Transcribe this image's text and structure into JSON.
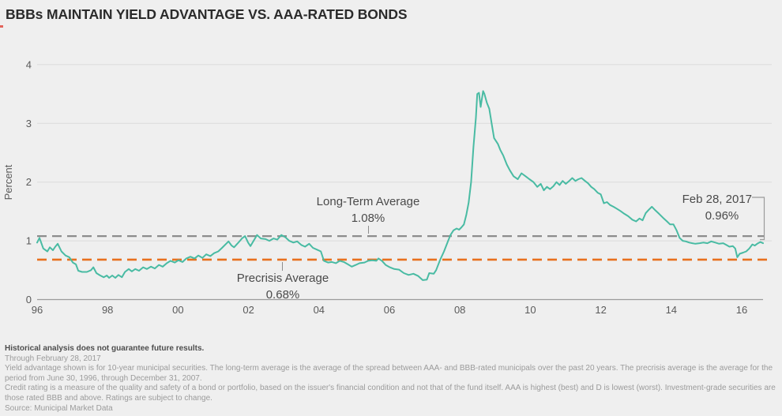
{
  "title": "BBBs MAINTAIN YIELD ADVANTAGE VS. AAA-RATED BONDS",
  "colors": {
    "background": "#efefef",
    "series_line": "#49bba3",
    "long_term_avg_line": "#8c8c8c",
    "precrisis_avg_line": "#e8701e",
    "gridline": "#dbdbdb",
    "axis_line": "#9b9b9b",
    "accent_mark": "#e2635a"
  },
  "annotations": {
    "long_term": {
      "label": "Long-Term Average",
      "value_label": "1.08%"
    },
    "precrisis": {
      "label": "Precrisis Average",
      "value_label": "0.68%"
    },
    "endpoint": {
      "label": "Feb 28, 2017",
      "value_label": "0.96%"
    }
  },
  "footnotes": {
    "disclaimer": "Historical analysis does not guarantee future results.",
    "through": "Through February 28, 2017",
    "note1": "Yield advantage shown is for 10-year municipal securities. The long-term average is the average of the spread between AAA- and BBB-rated municipals over the past 20 years. The precrisis average is the average for the period from June 30, 1996, through December 31, 2007.",
    "note2": "Credit rating is a measure of the quality and safety of a bond or portfolio, based on the issuer's financial condition and not that of the fund itself. AAA is highest (best) and D is lowest (worst). Investment-grade securities are those rated BBB and above. Ratings are subject to change.",
    "source": "Source: Municipal Market Data"
  },
  "chart_data": {
    "type": "line",
    "title": "BBBs MAINTAIN YIELD ADVANTAGE VS. AAA-RATED BONDS",
    "ylabel": "Percent",
    "ylim": [
      0,
      4
    ],
    "yticks": [
      0,
      1,
      2,
      3,
      4
    ],
    "x_range": [
      1996,
      2017.16
    ],
    "xticks": [
      {
        "year": 1996,
        "label": "96"
      },
      {
        "year": 1998,
        "label": "98"
      },
      {
        "year": 2000,
        "label": "00"
      },
      {
        "year": 2002,
        "label": "02"
      },
      {
        "year": 2004,
        "label": "04"
      },
      {
        "year": 2006,
        "label": "06"
      },
      {
        "year": 2008,
        "label": "08"
      },
      {
        "year": 2010,
        "label": "10"
      },
      {
        "year": 2012,
        "label": "12"
      },
      {
        "year": 2014,
        "label": "14"
      },
      {
        "year": 2016,
        "label": "16"
      }
    ],
    "grid": "horizontal",
    "reference_lines": [
      {
        "name": "long_term_average",
        "label": "Long-Term Average",
        "value": 1.08,
        "value_label": "1.08%",
        "style": "dashed",
        "color": "#8c8c8c"
      },
      {
        "name": "precrisis_average",
        "label": "Precrisis Average",
        "value": 0.68,
        "value_label": "0.68%",
        "style": "dashed",
        "color": "#e8701e"
      }
    ],
    "endpoint_annotation": {
      "label": "Feb 28, 2017",
      "value": 0.96,
      "value_label": "0.96%"
    },
    "series": [
      {
        "name": "BBB vs. AAA yield advantage (10-year municipals)",
        "color": "#49bba3",
        "points": [
          [
            1996.0,
            0.97
          ],
          [
            1996.07,
            1.05
          ],
          [
            1996.18,
            0.87
          ],
          [
            1996.3,
            0.82
          ],
          [
            1996.37,
            0.89
          ],
          [
            1996.46,
            0.84
          ],
          [
            1996.53,
            0.9
          ],
          [
            1996.6,
            0.95
          ],
          [
            1996.71,
            0.82
          ],
          [
            1996.83,
            0.75
          ],
          [
            1996.94,
            0.72
          ],
          [
            1997.04,
            0.63
          ],
          [
            1997.13,
            0.6
          ],
          [
            1997.2,
            0.49
          ],
          [
            1997.31,
            0.47
          ],
          [
            1997.45,
            0.47
          ],
          [
            1997.57,
            0.5
          ],
          [
            1997.64,
            0.55
          ],
          [
            1997.73,
            0.45
          ],
          [
            1997.84,
            0.41
          ],
          [
            1997.94,
            0.38
          ],
          [
            1998.03,
            0.41
          ],
          [
            1998.1,
            0.37
          ],
          [
            1998.19,
            0.41
          ],
          [
            1998.28,
            0.37
          ],
          [
            1998.37,
            0.42
          ],
          [
            1998.47,
            0.38
          ],
          [
            1998.56,
            0.47
          ],
          [
            1998.67,
            0.52
          ],
          [
            1998.76,
            0.48
          ],
          [
            1998.86,
            0.52
          ],
          [
            1998.97,
            0.49
          ],
          [
            1999.09,
            0.55
          ],
          [
            1999.2,
            0.52
          ],
          [
            1999.32,
            0.56
          ],
          [
            1999.43,
            0.53
          ],
          [
            1999.55,
            0.59
          ],
          [
            1999.66,
            0.56
          ],
          [
            1999.78,
            0.62
          ],
          [
            1999.89,
            0.66
          ],
          [
            2000.01,
            0.63
          ],
          [
            2000.12,
            0.67
          ],
          [
            2000.24,
            0.64
          ],
          [
            2000.35,
            0.7
          ],
          [
            2000.47,
            0.73
          ],
          [
            2000.59,
            0.7
          ],
          [
            2000.7,
            0.75
          ],
          [
            2000.82,
            0.71
          ],
          [
            2000.93,
            0.77
          ],
          [
            2001.05,
            0.74
          ],
          [
            2001.16,
            0.79
          ],
          [
            2001.28,
            0.82
          ],
          [
            2001.39,
            0.88
          ],
          [
            2001.51,
            0.95
          ],
          [
            2001.58,
            0.99
          ],
          [
            2001.67,
            0.92
          ],
          [
            2001.74,
            0.89
          ],
          [
            2001.85,
            0.96
          ],
          [
            2001.97,
            1.04
          ],
          [
            2002.06,
            1.08
          ],
          [
            2002.15,
            0.97
          ],
          [
            2002.22,
            0.91
          ],
          [
            2002.31,
            1.0
          ],
          [
            2002.41,
            1.1
          ],
          [
            2002.52,
            1.04
          ],
          [
            2002.66,
            1.03
          ],
          [
            2002.77,
            1.0
          ],
          [
            2002.89,
            1.04
          ],
          [
            2003.0,
            1.02
          ],
          [
            2003.12,
            1.1
          ],
          [
            2003.24,
            1.06
          ],
          [
            2003.35,
            1.0
          ],
          [
            2003.47,
            0.97
          ],
          [
            2003.58,
            0.99
          ],
          [
            2003.7,
            0.93
          ],
          [
            2003.81,
            0.9
          ],
          [
            2003.93,
            0.95
          ],
          [
            2004.04,
            0.88
          ],
          [
            2004.16,
            0.85
          ],
          [
            2004.27,
            0.82
          ],
          [
            2004.36,
            0.66
          ],
          [
            2004.48,
            0.63
          ],
          [
            2004.59,
            0.64
          ],
          [
            2004.71,
            0.62
          ],
          [
            2004.82,
            0.66
          ],
          [
            2004.94,
            0.64
          ],
          [
            2005.06,
            0.6
          ],
          [
            2005.17,
            0.56
          ],
          [
            2005.29,
            0.59
          ],
          [
            2005.4,
            0.62
          ],
          [
            2005.54,
            0.63
          ],
          [
            2005.65,
            0.66
          ],
          [
            2005.77,
            0.67
          ],
          [
            2005.89,
            0.66
          ],
          [
            2005.95,
            0.7
          ],
          [
            2006.05,
            0.66
          ],
          [
            2006.16,
            0.59
          ],
          [
            2006.28,
            0.55
          ],
          [
            2006.41,
            0.52
          ],
          [
            2006.55,
            0.51
          ],
          [
            2006.69,
            0.45
          ],
          [
            2006.83,
            0.42
          ],
          [
            2006.97,
            0.44
          ],
          [
            2007.11,
            0.4
          ],
          [
            2007.24,
            0.33
          ],
          [
            2007.36,
            0.34
          ],
          [
            2007.43,
            0.45
          ],
          [
            2007.56,
            0.44
          ],
          [
            2007.63,
            0.5
          ],
          [
            2007.75,
            0.68
          ],
          [
            2007.86,
            0.82
          ],
          [
            2007.98,
            1.0
          ],
          [
            2008.05,
            1.1
          ],
          [
            2008.14,
            1.18
          ],
          [
            2008.23,
            1.21
          ],
          [
            2008.3,
            1.19
          ],
          [
            2008.37,
            1.23
          ],
          [
            2008.44,
            1.28
          ],
          [
            2008.51,
            1.44
          ],
          [
            2008.58,
            1.65
          ],
          [
            2008.65,
            2.0
          ],
          [
            2008.72,
            2.6
          ],
          [
            2008.79,
            3.1
          ],
          [
            2008.83,
            3.5
          ],
          [
            2008.88,
            3.52
          ],
          [
            2008.93,
            3.28
          ],
          [
            2009.0,
            3.55
          ],
          [
            2009.04,
            3.5
          ],
          [
            2009.11,
            3.35
          ],
          [
            2009.18,
            3.25
          ],
          [
            2009.25,
            3.0
          ],
          [
            2009.32,
            2.75
          ],
          [
            2009.43,
            2.65
          ],
          [
            2009.5,
            2.55
          ],
          [
            2009.59,
            2.45
          ],
          [
            2009.69,
            2.3
          ],
          [
            2009.78,
            2.2
          ],
          [
            2009.89,
            2.1
          ],
          [
            2010.01,
            2.05
          ],
          [
            2010.12,
            2.15
          ],
          [
            2010.24,
            2.1
          ],
          [
            2010.35,
            2.05
          ],
          [
            2010.47,
            2.0
          ],
          [
            2010.58,
            1.92
          ],
          [
            2010.68,
            1.97
          ],
          [
            2010.77,
            1.86
          ],
          [
            2010.86,
            1.92
          ],
          [
            2010.95,
            1.88
          ],
          [
            2011.05,
            1.93
          ],
          [
            2011.14,
            2.0
          ],
          [
            2011.23,
            1.95
          ],
          [
            2011.32,
            2.02
          ],
          [
            2011.41,
            1.97
          ],
          [
            2011.51,
            2.02
          ],
          [
            2011.6,
            2.07
          ],
          [
            2011.69,
            2.02
          ],
          [
            2011.78,
            2.05
          ],
          [
            2011.87,
            2.07
          ],
          [
            2011.97,
            2.02
          ],
          [
            2012.06,
            1.98
          ],
          [
            2012.15,
            1.92
          ],
          [
            2012.24,
            1.88
          ],
          [
            2012.34,
            1.82
          ],
          [
            2012.43,
            1.79
          ],
          [
            2012.52,
            1.64
          ],
          [
            2012.61,
            1.66
          ],
          [
            2012.7,
            1.61
          ],
          [
            2012.8,
            1.58
          ],
          [
            2012.89,
            1.55
          ],
          [
            2013.0,
            1.51
          ],
          [
            2013.12,
            1.46
          ],
          [
            2013.23,
            1.42
          ],
          [
            2013.35,
            1.36
          ],
          [
            2013.46,
            1.33
          ],
          [
            2013.56,
            1.38
          ],
          [
            2013.65,
            1.35
          ],
          [
            2013.74,
            1.47
          ],
          [
            2013.83,
            1.53
          ],
          [
            2013.92,
            1.58
          ],
          [
            2014.02,
            1.52
          ],
          [
            2014.13,
            1.46
          ],
          [
            2014.25,
            1.39
          ],
          [
            2014.36,
            1.33
          ],
          [
            2014.45,
            1.28
          ],
          [
            2014.55,
            1.28
          ],
          [
            2014.64,
            1.18
          ],
          [
            2014.73,
            1.05
          ],
          [
            2014.82,
            1.0
          ],
          [
            2014.91,
            0.99
          ],
          [
            2015.01,
            0.97
          ],
          [
            2015.1,
            0.96
          ],
          [
            2015.19,
            0.95
          ],
          [
            2015.31,
            0.96
          ],
          [
            2015.42,
            0.97
          ],
          [
            2015.54,
            0.96
          ],
          [
            2015.65,
            0.99
          ],
          [
            2015.77,
            0.97
          ],
          [
            2015.88,
            0.95
          ],
          [
            2016.0,
            0.96
          ],
          [
            2016.09,
            0.93
          ],
          [
            2016.18,
            0.9
          ],
          [
            2016.28,
            0.91
          ],
          [
            2016.35,
            0.87
          ],
          [
            2016.41,
            0.72
          ],
          [
            2016.48,
            0.78
          ],
          [
            2016.58,
            0.8
          ],
          [
            2016.67,
            0.82
          ],
          [
            2016.76,
            0.87
          ],
          [
            2016.85,
            0.94
          ],
          [
            2016.92,
            0.92
          ],
          [
            2016.99,
            0.95
          ],
          [
            2017.08,
            0.98
          ],
          [
            2017.16,
            0.96
          ]
        ]
      }
    ]
  }
}
